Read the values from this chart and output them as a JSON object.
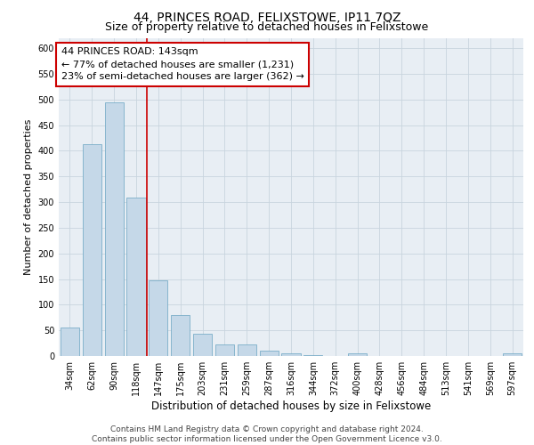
{
  "title": "44, PRINCES ROAD, FELIXSTOWE, IP11 7QZ",
  "subtitle": "Size of property relative to detached houses in Felixstowe",
  "xlabel": "Distribution of detached houses by size in Felixstowe",
  "ylabel": "Number of detached properties",
  "categories": [
    "34sqm",
    "62sqm",
    "90sqm",
    "118sqm",
    "147sqm",
    "175sqm",
    "203sqm",
    "231sqm",
    "259sqm",
    "287sqm",
    "316sqm",
    "344sqm",
    "372sqm",
    "400sqm",
    "428sqm",
    "456sqm",
    "484sqm",
    "513sqm",
    "541sqm",
    "569sqm",
    "597sqm"
  ],
  "values": [
    55,
    412,
    494,
    308,
    148,
    80,
    44,
    22,
    22,
    10,
    6,
    1,
    0,
    5,
    0,
    0,
    0,
    0,
    0,
    0,
    5
  ],
  "bar_color": "#c5d8e8",
  "bar_edge_color": "#7aaec8",
  "grid_color": "#c8d4de",
  "background_color": "#e8eef4",
  "vline_color": "#cc0000",
  "annotation_text": "44 PRINCES ROAD: 143sqm\n← 77% of detached houses are smaller (1,231)\n23% of semi-detached houses are larger (362) →",
  "annotation_box_color": "#ffffff",
  "annotation_box_edge": "#cc0000",
  "ylim": [
    0,
    620
  ],
  "yticks": [
    0,
    50,
    100,
    150,
    200,
    250,
    300,
    350,
    400,
    450,
    500,
    550,
    600
  ],
  "footer": "Contains HM Land Registry data © Crown copyright and database right 2024.\nContains public sector information licensed under the Open Government Licence v3.0.",
  "title_fontsize": 10,
  "subtitle_fontsize": 9,
  "xlabel_fontsize": 8.5,
  "ylabel_fontsize": 8,
  "tick_fontsize": 7,
  "annotation_fontsize": 8,
  "footer_fontsize": 6.5
}
